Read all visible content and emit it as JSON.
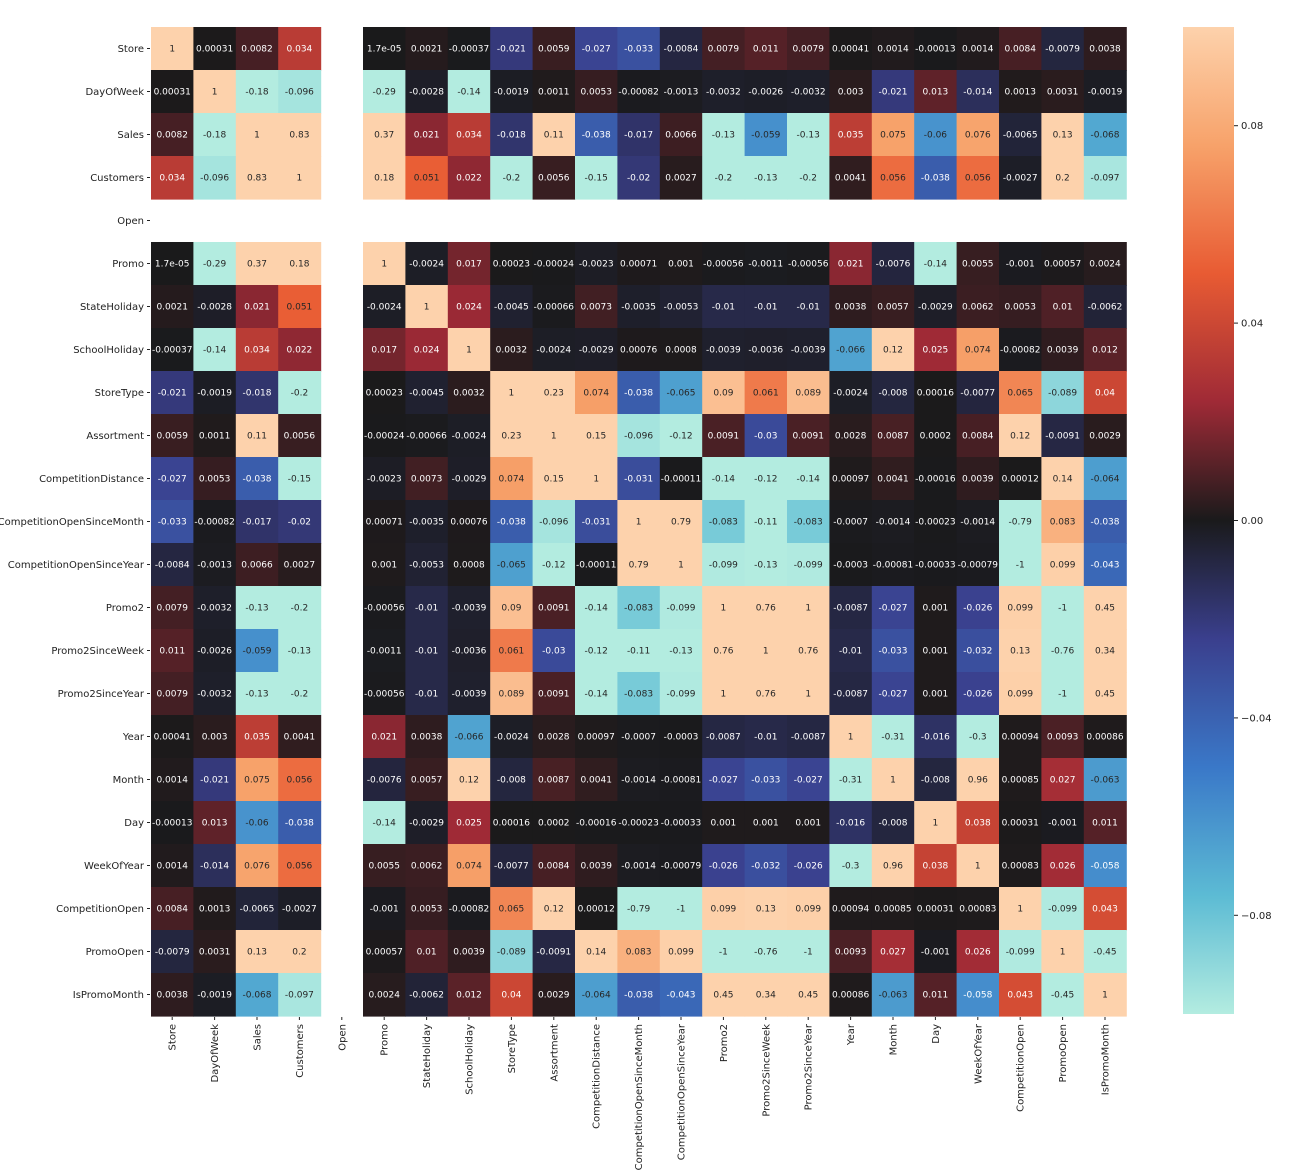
{
  "chart_data": {
    "type": "heatmap",
    "title": "",
    "xlabel": "",
    "ylabel": "",
    "labels": [
      "Store",
      "DayOfWeek",
      "Sales",
      "Customers",
      "Open",
      "Promo",
      "StateHoliday",
      "SchoolHoliday",
      "StoreType",
      "Assortment",
      "CompetitionDistance",
      "CompetitionOpenSinceMonth",
      "CompetitionOpenSinceYear",
      "Promo2",
      "Promo2SinceWeek",
      "Promo2SinceYear",
      "Year",
      "Month",
      "Day",
      "WeekOfYear",
      "CompetitionOpen",
      "PromoOpen",
      "IsPromoMonth"
    ],
    "cells": [
      [
        "1",
        "0.00031",
        "0.0082",
        "0.034",
        "",
        "1.7e-05",
        "0.0021",
        "-0.00037",
        "-0.021",
        "0.0059",
        "-0.027",
        "-0.033",
        "-0.0084",
        "0.0079",
        "0.011",
        "0.0079",
        "0.00041",
        "0.0014",
        "-0.00013",
        "0.0014",
        "0.0084",
        "-0.0079",
        "0.0038"
      ],
      [
        "0.00031",
        "1",
        "-0.18",
        "-0.096",
        "",
        "-0.29",
        "-0.0028",
        "-0.14",
        "-0.0019",
        "0.0011",
        "0.0053",
        "-0.00082",
        "-0.0013",
        "-0.0032",
        "-0.0026",
        "-0.0032",
        "0.003",
        "-0.021",
        "0.013",
        "-0.014",
        "0.0013",
        "0.0031",
        "-0.0019"
      ],
      [
        "0.0082",
        "-0.18",
        "1",
        "0.83",
        "",
        "0.37",
        "0.021",
        "0.034",
        "-0.018",
        "0.11",
        "-0.038",
        "-0.017",
        "0.0066",
        "-0.13",
        "-0.059",
        "-0.13",
        "0.035",
        "0.075",
        "-0.06",
        "0.076",
        "-0.0065",
        "0.13",
        "-0.068"
      ],
      [
        "0.034",
        "-0.096",
        "0.83",
        "1",
        "",
        "0.18",
        "0.051",
        "0.022",
        "-0.2",
        "0.0056",
        "-0.15",
        "-0.02",
        "0.0027",
        "-0.2",
        "-0.13",
        "-0.2",
        "0.0041",
        "0.056",
        "-0.038",
        "0.056",
        "-0.0027",
        "0.2",
        "-0.097"
      ],
      [
        "",
        "",
        "",
        "",
        "",
        "",
        "",
        "",
        "",
        "",
        "",
        "",
        "",
        "",
        "",
        "",
        "",
        "",
        "",
        "",
        "",
        "",
        ""
      ],
      [
        "1.7e-05",
        "-0.29",
        "0.37",
        "0.18",
        "",
        "1",
        "-0.0024",
        "0.017",
        "0.00023",
        "-0.00024",
        "-0.0023",
        "0.00071",
        "0.001",
        "-0.00056",
        "-0.0011",
        "-0.00056",
        "0.021",
        "-0.0076",
        "-0.14",
        "0.0055",
        "-0.001",
        "0.00057",
        "0.0024"
      ],
      [
        "0.0021",
        "-0.0028",
        "0.021",
        "0.051",
        "",
        "-0.0024",
        "1",
        "0.024",
        "-0.0045",
        "-0.00066",
        "0.0073",
        "-0.0035",
        "-0.0053",
        "-0.01",
        "-0.01",
        "-0.01",
        "0.0038",
        "0.0057",
        "-0.0029",
        "0.0062",
        "0.0053",
        "0.01",
        "-0.0062"
      ],
      [
        "-0.00037",
        "-0.14",
        "0.034",
        "0.022",
        "",
        "0.017",
        "0.024",
        "1",
        "0.0032",
        "-0.0024",
        "-0.0029",
        "0.00076",
        "0.0008",
        "-0.0039",
        "-0.0036",
        "-0.0039",
        "-0.066",
        "0.12",
        "0.025",
        "0.074",
        "-0.00082",
        "0.0039",
        "0.012"
      ],
      [
        "-0.021",
        "-0.0019",
        "-0.018",
        "-0.2",
        "",
        "0.00023",
        "-0.0045",
        "0.0032",
        "1",
        "0.23",
        "0.074",
        "-0.038",
        "-0.065",
        "0.09",
        "0.061",
        "0.089",
        "-0.0024",
        "-0.008",
        "0.00016",
        "-0.0077",
        "0.065",
        "-0.089",
        "0.04"
      ],
      [
        "0.0059",
        "0.0011",
        "0.11",
        "0.0056",
        "",
        "-0.00024",
        "-0.00066",
        "-0.0024",
        "0.23",
        "1",
        "0.15",
        "-0.096",
        "-0.12",
        "0.0091",
        "-0.03",
        "0.0091",
        "0.0028",
        "0.0087",
        "0.0002",
        "0.0084",
        "0.12",
        "-0.0091",
        "0.0029"
      ],
      [
        "-0.027",
        "0.0053",
        "-0.038",
        "-0.15",
        "",
        "-0.0023",
        "0.0073",
        "-0.0029",
        "0.074",
        "0.15",
        "1",
        "-0.031",
        "-0.00011",
        "-0.14",
        "-0.12",
        "-0.14",
        "0.00097",
        "0.0041",
        "-0.00016",
        "0.0039",
        "0.00012",
        "0.14",
        "-0.064"
      ],
      [
        "-0.033",
        "-0.00082",
        "-0.017",
        "-0.02",
        "",
        "0.00071",
        "-0.0035",
        "0.00076",
        "-0.038",
        "-0.096",
        "-0.031",
        "1",
        "0.79",
        "-0.083",
        "-0.11",
        "-0.083",
        "-0.0007",
        "-0.0014",
        "-0.00023",
        "-0.0014",
        "-0.79",
        "0.083",
        "-0.038"
      ],
      [
        "-0.0084",
        "-0.0013",
        "0.0066",
        "0.0027",
        "",
        "0.001",
        "-0.0053",
        "0.0008",
        "-0.065",
        "-0.12",
        "-0.00011",
        "0.79",
        "1",
        "-0.099",
        "-0.13",
        "-0.099",
        "-0.0003",
        "-0.00081",
        "-0.00033",
        "-0.00079",
        "-1",
        "0.099",
        "-0.043"
      ],
      [
        "0.0079",
        "-0.0032",
        "-0.13",
        "-0.2",
        "",
        "-0.00056",
        "-0.01",
        "-0.0039",
        "0.09",
        "0.0091",
        "-0.14",
        "-0.083",
        "-0.099",
        "1",
        "0.76",
        "1",
        "-0.0087",
        "-0.027",
        "0.001",
        "-0.026",
        "0.099",
        "-1",
        "0.45"
      ],
      [
        "0.011",
        "-0.0026",
        "-0.059",
        "-0.13",
        "",
        "-0.0011",
        "-0.01",
        "-0.0036",
        "0.061",
        "-0.03",
        "-0.12",
        "-0.11",
        "-0.13",
        "0.76",
        "1",
        "0.76",
        "-0.01",
        "-0.033",
        "0.001",
        "-0.032",
        "0.13",
        "-0.76",
        "0.34"
      ],
      [
        "0.0079",
        "-0.0032",
        "-0.13",
        "-0.2",
        "",
        "-0.00056",
        "-0.01",
        "-0.0039",
        "0.089",
        "0.0091",
        "-0.14",
        "-0.083",
        "-0.099",
        "1",
        "0.76",
        "1",
        "-0.0087",
        "-0.027",
        "0.001",
        "-0.026",
        "0.099",
        "-1",
        "0.45"
      ],
      [
        "0.00041",
        "0.003",
        "0.035",
        "0.0041",
        "",
        "0.021",
        "0.0038",
        "-0.066",
        "-0.0024",
        "0.0028",
        "0.00097",
        "-0.0007",
        "-0.0003",
        "-0.0087",
        "-0.01",
        "-0.0087",
        "1",
        "-0.31",
        "-0.016",
        "-0.3",
        "0.00094",
        "0.0093",
        "0.00086"
      ],
      [
        "0.0014",
        "-0.021",
        "0.075",
        "0.056",
        "",
        "-0.0076",
        "0.0057",
        "0.12",
        "-0.008",
        "0.0087",
        "0.0041",
        "-0.0014",
        "-0.00081",
        "-0.027",
        "-0.033",
        "-0.027",
        "-0.31",
        "1",
        "-0.008",
        "0.96",
        "0.00085",
        "0.027",
        "-0.063"
      ],
      [
        "-0.00013",
        "0.013",
        "-0.06",
        "-0.038",
        "",
        "-0.14",
        "-0.0029",
        "0.025",
        "0.00016",
        "0.0002",
        "-0.00016",
        "-0.00023",
        "-0.00033",
        "0.001",
        "0.001",
        "0.001",
        "-0.016",
        "-0.008",
        "1",
        "0.038",
        "0.00031",
        "-0.001",
        "0.011"
      ],
      [
        "0.0014",
        "-0.014",
        "0.076",
        "0.056",
        "",
        "0.0055",
        "0.0062",
        "0.074",
        "-0.0077",
        "0.0084",
        "0.0039",
        "-0.0014",
        "-0.00079",
        "-0.026",
        "-0.032",
        "-0.026",
        "-0.3",
        "0.96",
        "0.038",
        "1",
        "0.00083",
        "0.026",
        "-0.058"
      ],
      [
        "0.0084",
        "0.0013",
        "-0.0065",
        "-0.0027",
        "",
        "-0.001",
        "0.0053",
        "-0.00082",
        "0.065",
        "0.12",
        "0.00012",
        "-0.79",
        "-1",
        "0.099",
        "0.13",
        "0.099",
        "0.00094",
        "0.00085",
        "0.00031",
        "0.00083",
        "1",
        "-0.099",
        "0.043"
      ],
      [
        "-0.0079",
        "0.0031",
        "0.13",
        "0.2",
        "",
        "0.00057",
        "0.01",
        "0.0039",
        "-0.089",
        "-0.0091",
        "0.14",
        "0.083",
        "0.099",
        "-1",
        "-0.76",
        "-1",
        "0.0093",
        "0.027",
        "-0.001",
        "0.026",
        "-0.099",
        "1",
        "-0.45"
      ],
      [
        "0.0038",
        "-0.0019",
        "-0.068",
        "-0.097",
        "",
        "0.0024",
        "-0.0062",
        "0.012",
        "0.04",
        "0.0029",
        "-0.064",
        "-0.038",
        "-0.043",
        "0.45",
        "0.34",
        "0.45",
        "0.00086",
        "-0.063",
        "0.011",
        "-0.058",
        "0.043",
        "-0.45",
        "1"
      ]
    ],
    "vmin": -0.1,
    "vmax": 0.1,
    "colormap": "icefire",
    "colorbar": {
      "ticks": [
        0.08,
        0.04,
        0.0,
        -0.04,
        -0.08
      ],
      "tick_labels": [
        "0.08",
        "0.04",
        "0.00",
        "−0.04",
        "−0.08"
      ]
    },
    "grid": false,
    "legend": "colorbar-right"
  }
}
